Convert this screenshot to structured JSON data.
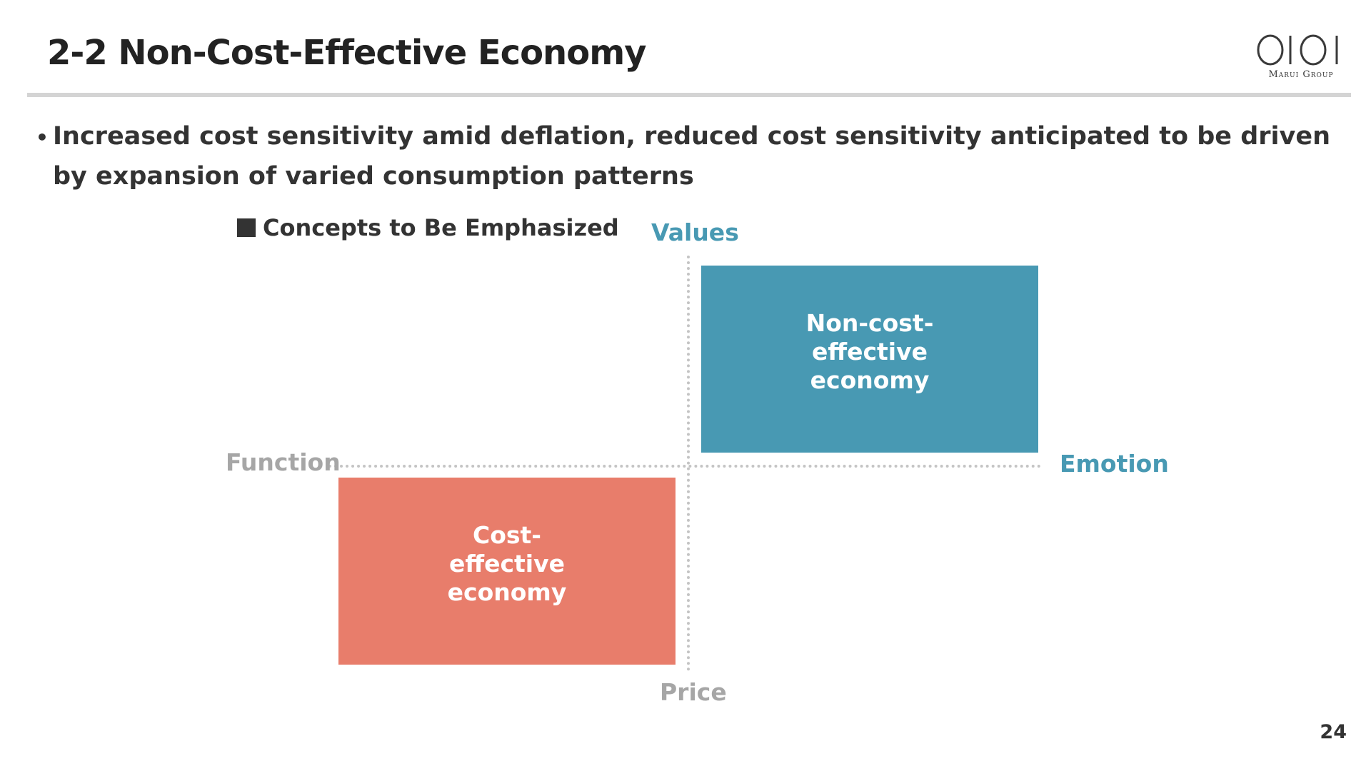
{
  "slide": {
    "title": "2-2 Non-Cost-Effective Economy",
    "bullet_text": "Increased cost sensitivity amid deflation, reduced cost sensitivity anticipated to be driven by expansion of varied consumption patterns",
    "legend_text": "Concepts to Be Emphasized",
    "page_number": "24"
  },
  "logo": {
    "text": "Marui Group",
    "color": "#3a3a3a"
  },
  "diagram": {
    "axis_top": "Values",
    "axis_bottom": "Price",
    "axis_left": "Function",
    "axis_right": "Emotion",
    "box_top_right": "Non-cost-effective economy",
    "box_bottom_left": "Cost-effective economy"
  },
  "colors": {
    "teal": "#4899b3",
    "coral": "#e87d6b",
    "muted_gray": "#a6a6a6",
    "text_dark": "#333333"
  }
}
